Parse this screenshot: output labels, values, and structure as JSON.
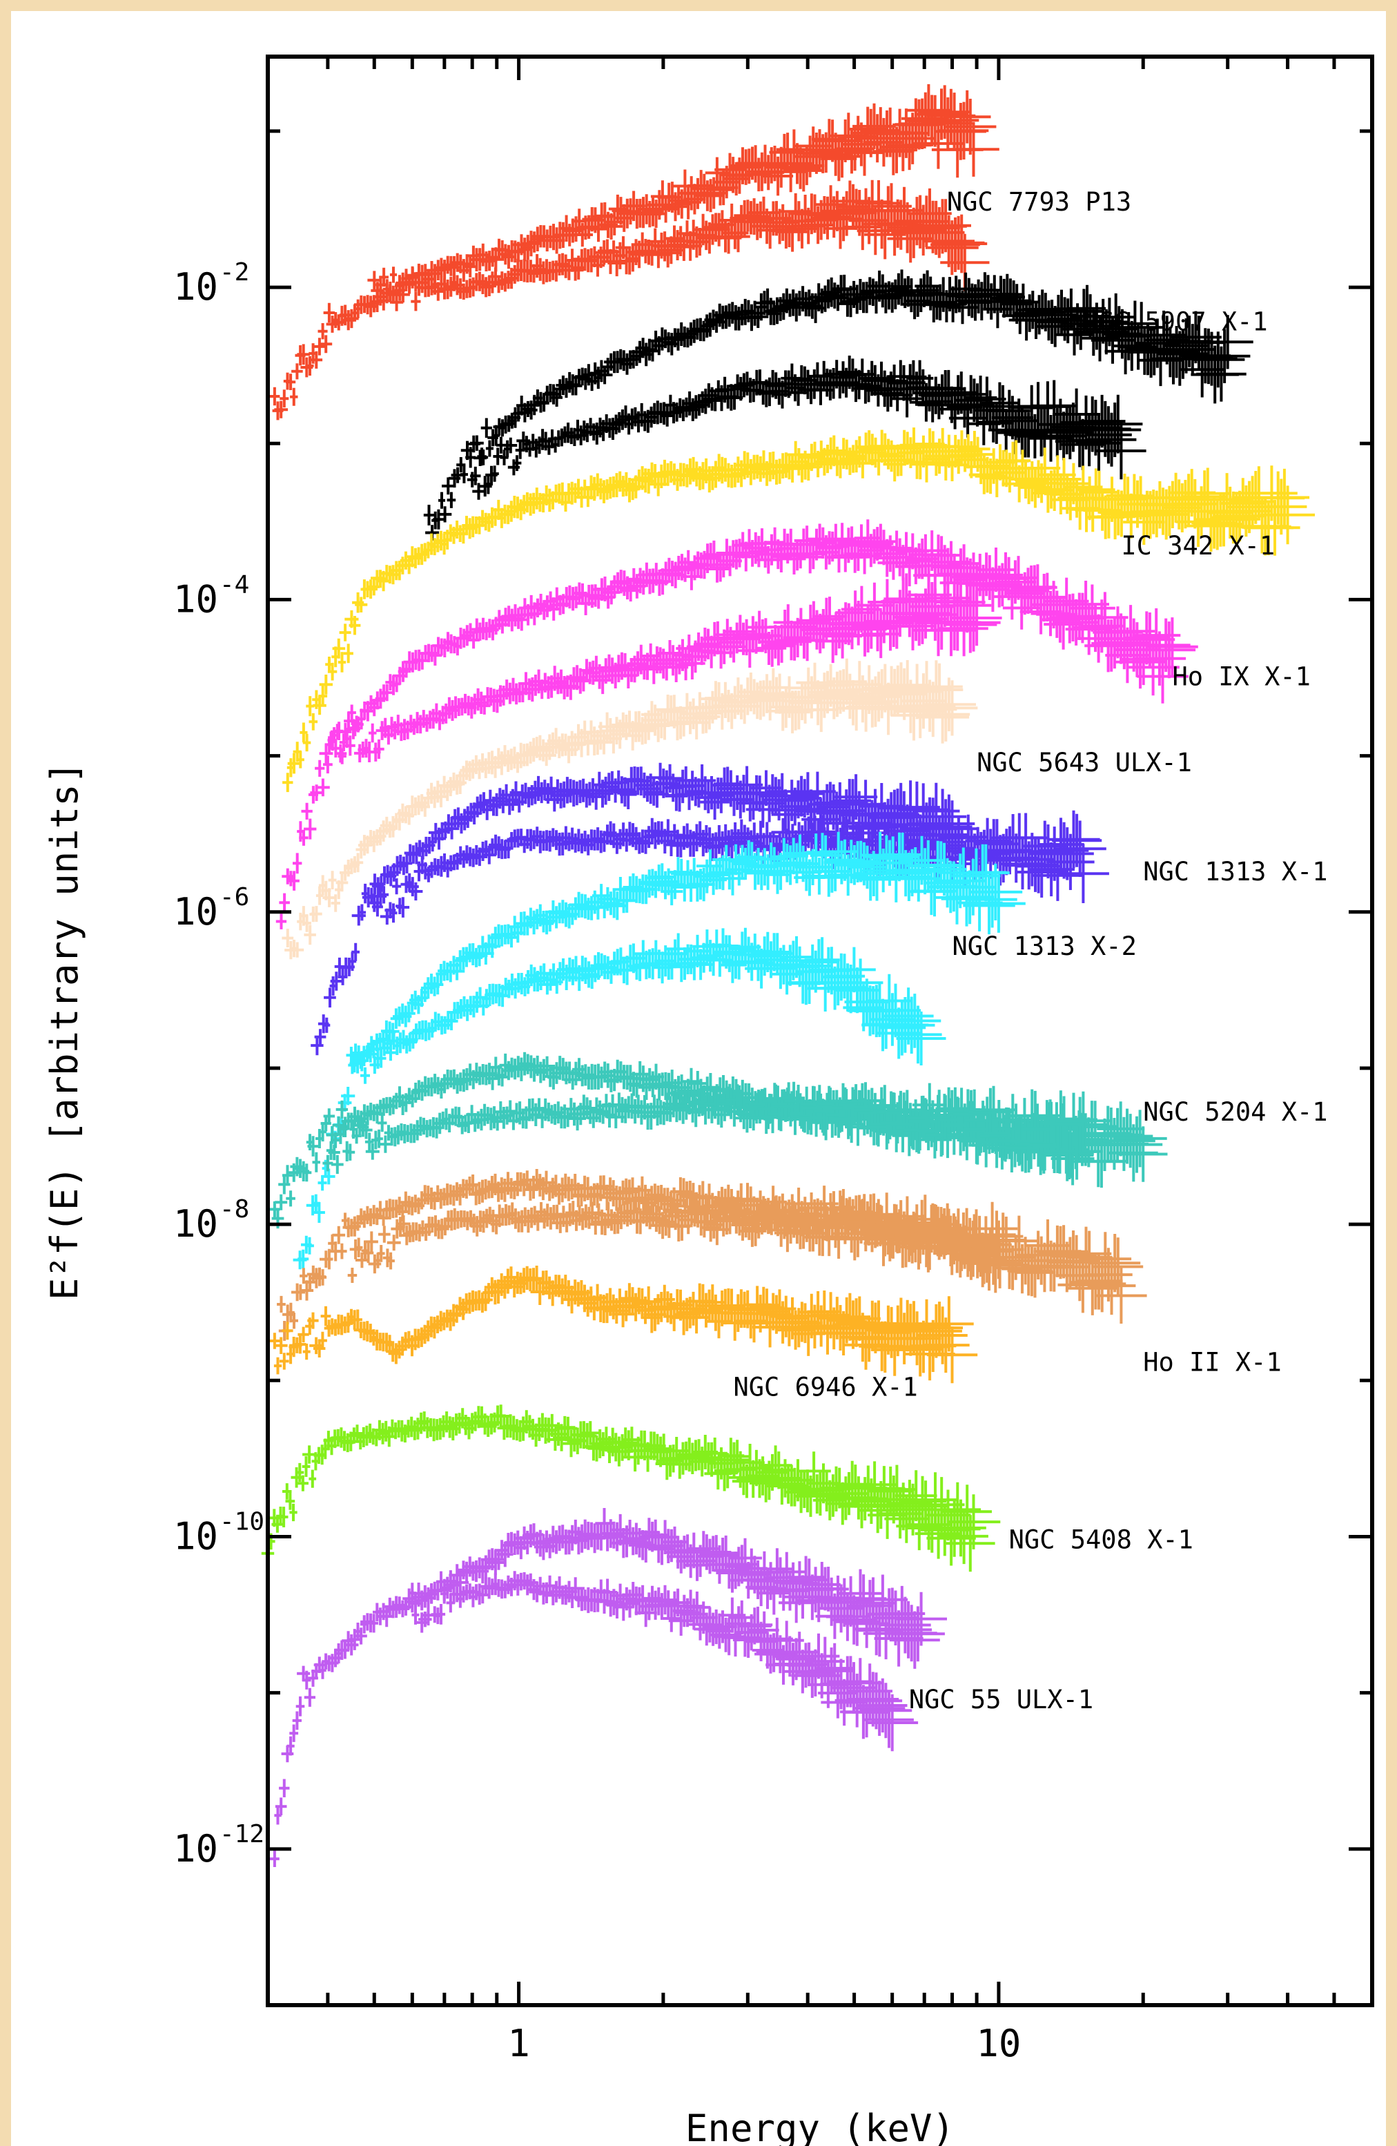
{
  "chart_data": {
    "type": "scatter",
    "title": "",
    "xlabel": "Energy (keV)",
    "ylabel": "E²f(E) [arbitrary units]",
    "xscale": "log",
    "yscale": "log",
    "xlim": [
      0.3,
      60
    ],
    "ylim": [
      1e-13,
      0.3
    ],
    "x_tick_labels": [
      "1",
      "10"
    ],
    "x_ticks": [
      1,
      10
    ],
    "y_ticks": [
      {
        "value": 0.01,
        "base": "10",
        "exp": "-2"
      },
      {
        "value": 0.0001,
        "base": "10",
        "exp": "-4"
      },
      {
        "value": 1e-06,
        "base": "10",
        "exp": "-6"
      },
      {
        "value": 1e-08,
        "base": "10",
        "exp": "-8"
      },
      {
        "value": 1e-10,
        "base": "10",
        "exp": "-10"
      },
      {
        "value": 1e-12,
        "base": "10",
        "exp": "-12"
      }
    ],
    "grid": false,
    "legend": "none",
    "series": [
      {
        "name": "NGC 7793 P13",
        "color": "#f44a2c",
        "label_at": [
          7.8,
          0.035
        ],
        "curves": [
          [
            [
              0.31,
              0.0016
            ],
            [
              0.4,
              0.0055
            ],
            [
              0.6,
              0.011
            ],
            [
              1,
              0.018
            ],
            [
              2,
              0.035
            ],
            [
              3,
              0.055
            ],
            [
              5,
              0.08
            ],
            [
              7,
              0.105
            ],
            [
              9,
              0.095
            ]
          ],
          [
            [
              0.5,
              0.01
            ],
            [
              0.8,
              0.01
            ],
            [
              1,
              0.012
            ],
            [
              2,
              0.018
            ],
            [
              3,
              0.025
            ],
            [
              5,
              0.03
            ],
            [
              7,
              0.025
            ],
            [
              8.5,
              0.016
            ]
          ]
        ]
      },
      {
        "name": "NGC 5907 X-1",
        "color": "#000000",
        "label_at": [
          15,
          0.006
        ],
        "curves": [
          [
            [
              0.65,
              0.0003
            ],
            [
              0.8,
              0.0008
            ],
            [
              1,
              0.0016
            ],
            [
              2,
              0.0045
            ],
            [
              3,
              0.007
            ],
            [
              5,
              0.009
            ],
            [
              7,
              0.009
            ],
            [
              10,
              0.008
            ],
            [
              15,
              0.006
            ],
            [
              22,
              0.004
            ],
            [
              30,
              0.0035
            ]
          ],
          [
            [
              0.8,
              0.0006
            ],
            [
              1,
              0.0009
            ],
            [
              2,
              0.0016
            ],
            [
              3,
              0.0022
            ],
            [
              5,
              0.0025
            ],
            [
              7,
              0.0022
            ],
            [
              10,
              0.0015
            ],
            [
              18,
              0.0012
            ]
          ]
        ]
      },
      {
        "name": "IC 342 X-1",
        "color": "#ffdd22",
        "label_at": [
          18,
          0.00022
        ],
        "curves": [
          [
            [
              0.33,
              8e-06
            ],
            [
              0.5,
              0.00013
            ],
            [
              0.8,
              0.0003
            ],
            [
              1,
              0.0004
            ],
            [
              2,
              0.0006
            ],
            [
              3,
              0.0007
            ],
            [
              5,
              0.00085
            ],
            [
              8,
              0.00085
            ],
            [
              12,
              0.0006
            ],
            [
              17,
              0.0004
            ],
            [
              25,
              0.00038
            ],
            [
              40,
              0.00038
            ]
          ]
        ]
      },
      {
        "name": "Ho IX X-1",
        "color": "#ff44ee",
        "label_at": [
          23,
          3.2e-05
        ],
        "curves": [
          [
            [
              0.32,
              1e-06
            ],
            [
              0.4,
              1e-05
            ],
            [
              0.6,
              4e-05
            ],
            [
              1,
              8e-05
            ],
            [
              2,
              0.00014
            ],
            [
              3,
              0.0002
            ],
            [
              5,
              0.00022
            ],
            [
              8,
              0.00016
            ],
            [
              12,
              0.0001
            ],
            [
              18,
              6e-05
            ],
            [
              23,
              4e-05
            ]
          ],
          [
            [
              0.4,
              1.1e-05
            ],
            [
              0.6,
              1.6e-05
            ],
            [
              1,
              2.6e-05
            ],
            [
              2,
              4e-05
            ],
            [
              3,
              5.5e-05
            ],
            [
              5,
              7e-05
            ],
            [
              7,
              8.5e-05
            ],
            [
              9,
              8e-05
            ]
          ]
        ]
      },
      {
        "name": "NGC 5643 ULX-1",
        "color": "#fde1c5",
        "label_at": [
          9,
          9e-06
        ],
        "curves": [
          [
            [
              0.33,
              6e-07
            ],
            [
              0.5,
              3e-06
            ],
            [
              0.8,
              8e-06
            ],
            [
              1,
              1e-05
            ],
            [
              2,
              1.7e-05
            ],
            [
              3,
              2.2e-05
            ],
            [
              5,
              2.5e-05
            ],
            [
              8,
              2.2e-05
            ]
          ]
        ]
      },
      {
        "name": "NGC 1313 X-1",
        "color": "#5a34f2",
        "label_at": [
          20,
          1.8e-06
        ],
        "curves": [
          [
            [
              0.38,
              1.5e-07
            ],
            [
              0.5,
              1.5e-06
            ],
            [
              0.8,
              4.5e-06
            ],
            [
              1,
              5.5e-06
            ],
            [
              2,
              6.5e-06
            ],
            [
              3,
              5.5e-06
            ],
            [
              5,
              4.5e-06
            ],
            [
              8,
              3.5e-06
            ]
          ],
          [
            [
              0.5,
              1e-06
            ],
            [
              0.7,
              2e-06
            ],
            [
              1,
              2.8e-06
            ],
            [
              2,
              3e-06
            ],
            [
              4,
              2.8e-06
            ],
            [
              8,
              2.6e-06
            ],
            [
              15,
              2.2e-06
            ]
          ]
        ]
      },
      {
        "name": "NGC 1313 X-2",
        "color": "#33eeff",
        "label_at": [
          8,
          6e-07
        ],
        "curves": [
          [
            [
              0.35,
              5e-09
            ],
            [
              0.45,
              1e-07
            ],
            [
              0.7,
              4e-07
            ],
            [
              1,
              8e-07
            ],
            [
              2,
              1.5e-06
            ],
            [
              3,
              2e-06
            ],
            [
              5,
              2e-06
            ],
            [
              7,
              1.8e-06
            ],
            [
              10,
              1.3e-06
            ]
          ],
          [
            [
              0.45,
              1e-07
            ],
            [
              0.8,
              2.5e-07
            ],
            [
              1,
              3.5e-07
            ],
            [
              2,
              5e-07
            ],
            [
              3,
              5.5e-07
            ],
            [
              5,
              3.5e-07
            ],
            [
              6,
              2e-07
            ],
            [
              7,
              1.5e-07
            ]
          ]
        ]
      },
      {
        "name": "NGC 5204 X-1",
        "color": "#3dc9bb",
        "label_at": [
          20,
          5.2e-08
        ],
        "curves": [
          [
            [
              0.31,
              1.3e-08
            ],
            [
              0.4,
              4e-08
            ],
            [
              0.7,
              8e-08
            ],
            [
              1,
              1e-07
            ],
            [
              2,
              8e-08
            ],
            [
              3,
              6e-08
            ],
            [
              5,
              5e-08
            ],
            [
              8,
              4e-08
            ],
            [
              12,
              3.5e-08
            ],
            [
              20,
              3e-08
            ]
          ],
          [
            [
              0.4,
              3e-08
            ],
            [
              0.7,
              4.5e-08
            ],
            [
              1,
              5e-08
            ],
            [
              2,
              5.5e-08
            ],
            [
              4,
              5.5e-08
            ],
            [
              6,
              5e-08
            ],
            [
              10,
              4.2e-08
            ],
            [
              15,
              3.6e-08
            ]
          ]
        ]
      },
      {
        "name": "Ho II X-1",
        "color": "#e89c5a",
        "label_at": [
          20,
          1.3e-09
        ],
        "curves": [
          [
            [
              0.32,
              2.4e-09
            ],
            [
              0.45,
              1e-08
            ],
            [
              0.7,
              1.6e-08
            ],
            [
              1,
              1.8e-08
            ],
            [
              2,
              1.5e-08
            ],
            [
              3,
              1.3e-08
            ],
            [
              5,
              1.1e-08
            ],
            [
              8,
              8e-09
            ],
            [
              12,
              6e-09
            ],
            [
              18,
              4.5e-09
            ]
          ],
          [
            [
              0.45,
              6e-09
            ],
            [
              0.7,
              1e-08
            ],
            [
              1,
              1.1e-08
            ],
            [
              2,
              1.1e-08
            ],
            [
              4,
              1e-08
            ],
            [
              7,
              9e-09
            ],
            [
              10,
              7e-09
            ]
          ]
        ]
      },
      {
        "name": "NGC 6946 X-1",
        "color": "#fdb224",
        "label_at": [
          2.8,
          9e-10
        ],
        "curves": [
          [
            [
              0.31,
              1.5e-09
            ],
            [
              0.45,
              2.5e-09
            ],
            [
              0.55,
              1.5e-09
            ],
            [
              0.7,
              2.5e-09
            ],
            [
              1,
              4.5e-09
            ],
            [
              1.5,
              3e-09
            ],
            [
              3,
              2.7e-09
            ],
            [
              5,
              2.2e-09
            ],
            [
              8,
              1.8e-09
            ]
          ]
        ]
      },
      {
        "name": "NGC 5408 X-1",
        "color": "#84ef1c",
        "label_at": [
          10.5,
          9.5e-11
        ],
        "curves": [
          [
            [
              0.3,
              1e-10
            ],
            [
              0.4,
              4e-10
            ],
            [
              0.6,
              5e-10
            ],
            [
              0.9,
              5.5e-10
            ],
            [
              1.5,
              4e-10
            ],
            [
              2.5,
              3e-10
            ],
            [
              4,
              2.2e-10
            ],
            [
              6,
              1.6e-10
            ],
            [
              9,
              1.1e-10
            ]
          ]
        ]
      },
      {
        "name": "NGC 55 ULX-1",
        "color": "#c05df0",
        "label_at": [
          6.5,
          9e-12
        ],
        "curves": [
          [
            [
              0.31,
              1e-12
            ],
            [
              0.35,
              1e-11
            ],
            [
              0.5,
              3e-11
            ],
            [
              0.8,
              6e-11
            ],
            [
              1,
              9e-11
            ],
            [
              1.5,
              1.1e-10
            ],
            [
              2,
              9e-11
            ],
            [
              3,
              6e-11
            ],
            [
              5,
              3.5e-11
            ],
            [
              7,
              2.6e-11
            ]
          ],
          [
            [
              0.6,
              3.5e-11
            ],
            [
              1,
              5e-11
            ],
            [
              2,
              3.5e-11
            ],
            [
              3,
              2.5e-11
            ],
            [
              4,
              1.5e-11
            ],
            [
              5,
              1e-11
            ],
            [
              6,
              7e-12
            ]
          ]
        ]
      }
    ]
  }
}
